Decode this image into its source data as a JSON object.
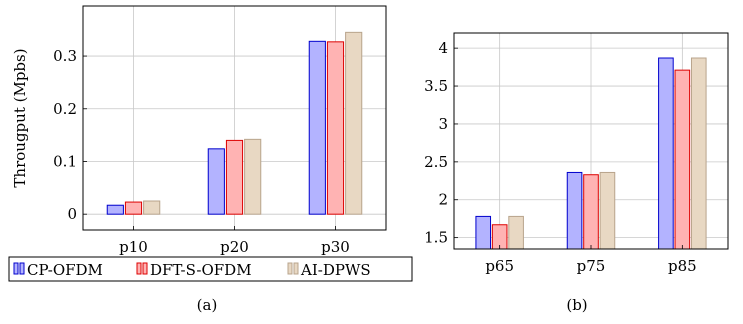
{
  "legend": {
    "items": [
      {
        "name": "CP-OFDM",
        "fill": "#b3b3ff",
        "stroke": "#0000cc"
      },
      {
        "name": "DFT-S-OFDM",
        "fill": "#ffb3b3",
        "stroke": "#dd0000"
      },
      {
        "name": "AI-DPWS",
        "fill": "#e8d8c3",
        "stroke": "#b8a48c"
      }
    ]
  },
  "chart_data": [
    {
      "type": "bar",
      "caption": "(a)",
      "title": "",
      "xlabel": "",
      "ylabel": "Througput (Mpbs)",
      "categories": [
        "p10",
        "p20",
        "p30"
      ],
      "series": [
        {
          "name": "CP-OFDM",
          "values": [
            0.017,
            0.124,
            0.328
          ]
        },
        {
          "name": "DFT-S-OFDM",
          "values": [
            0.023,
            0.14,
            0.327
          ]
        },
        {
          "name": "AI-DPWS",
          "values": [
            0.025,
            0.142,
            0.345
          ]
        }
      ],
      "ylim": [
        -0.03,
        0.395
      ],
      "yticks": [
        0,
        0.1,
        0.2,
        0.3
      ],
      "ytick_labels": [
        "0",
        "0.1",
        "0.2",
        "0.3"
      ],
      "grid": true,
      "legend": "bottom"
    },
    {
      "type": "bar",
      "caption": "(b)",
      "title": "",
      "xlabel": "",
      "ylabel": "",
      "categories": [
        "p65",
        "p75",
        "p85"
      ],
      "series": [
        {
          "name": "CP-OFDM",
          "values": [
            1.78,
            2.36,
            3.87
          ]
        },
        {
          "name": "DFT-S-OFDM",
          "values": [
            1.67,
            2.33,
            3.71
          ]
        },
        {
          "name": "AI-DPWS",
          "values": [
            1.78,
            2.36,
            3.87
          ]
        }
      ],
      "ylim": [
        1.35,
        4.2
      ],
      "yticks": [
        1.5,
        2,
        2.5,
        3,
        3.5,
        4
      ],
      "ytick_labels": [
        "1.5",
        "2",
        "2.5",
        "3",
        "3.5",
        "4"
      ],
      "grid": true,
      "legend": "none"
    }
  ]
}
